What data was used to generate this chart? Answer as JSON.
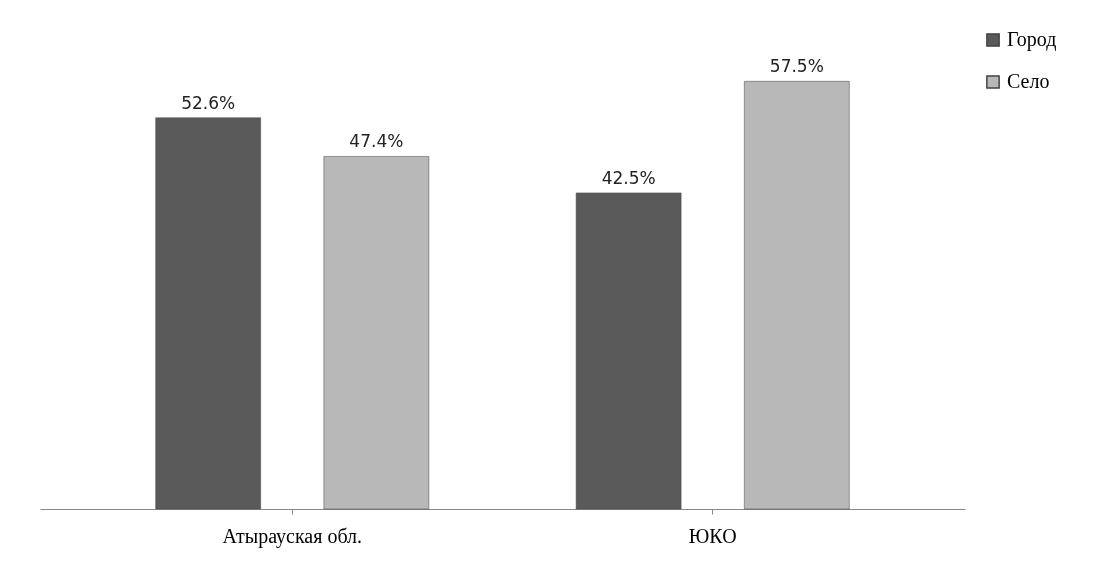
{
  "chart_data": {
    "type": "bar",
    "categories": [
      "Атырауская обл.",
      "ЮКО"
    ],
    "series": [
      {
        "name": "Город",
        "color": "#5a5a5a",
        "values": [
          52.6,
          42.5
        ],
        "value_labels": [
          "52.6%",
          "42.5%"
        ]
      },
      {
        "name": "Село",
        "color": "#b8b8b8",
        "values": [
          47.4,
          57.5
        ],
        "value_labels": [
          "47.4%",
          "57.5%"
        ]
      }
    ],
    "legend": "right",
    "grid": false
  }
}
